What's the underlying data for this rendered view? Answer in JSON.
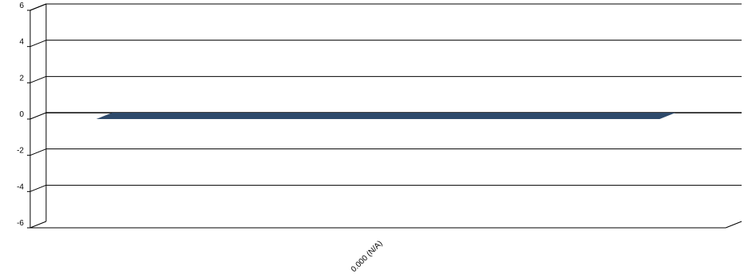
{
  "chart_data": {
    "type": "bar",
    "title": "",
    "xlabel": "",
    "ylabel": "",
    "categories": [
      "0.000 (N/A)"
    ],
    "series": [
      {
        "values": [
          0
        ]
      }
    ],
    "ylim": [
      -6,
      6
    ],
    "yticks": [
      "6",
      "4",
      "2",
      "0",
      "-2",
      "-4",
      "-6"
    ],
    "grid": true,
    "three_d": true,
    "legend": "none",
    "colors": {
      "bar": "#2e4a6b",
      "grid": "#000000",
      "background": "#ffffff"
    }
  }
}
